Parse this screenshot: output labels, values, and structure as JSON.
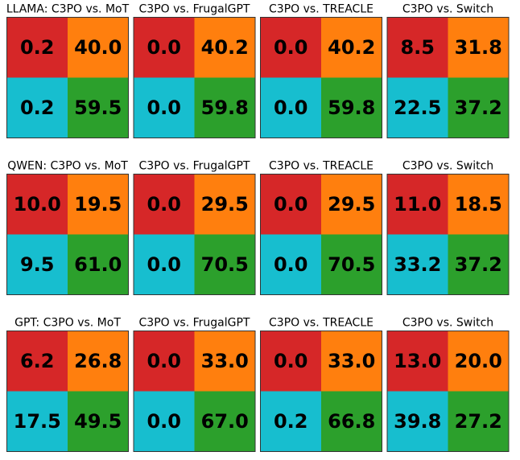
{
  "chart_data": [
    {
      "type": "heatmap",
      "title": "LLAMA: C3PO vs. MoT",
      "values": [
        [
          0.2,
          40.0
        ],
        [
          0.2,
          59.5
        ]
      ],
      "value_labels": [
        [
          "0.2",
          "40.0"
        ],
        [
          "0.2",
          "59.5"
        ]
      ],
      "colors": [
        [
          "#d62728",
          "#ff7f0e"
        ],
        [
          "#17becf",
          "#2ca02c"
        ]
      ]
    },
    {
      "type": "heatmap",
      "title": "C3PO vs. FrugalGPT",
      "values": [
        [
          0.0,
          40.2
        ],
        [
          0.0,
          59.8
        ]
      ],
      "value_labels": [
        [
          "0.0",
          "40.2"
        ],
        [
          "0.0",
          "59.8"
        ]
      ],
      "colors": [
        [
          "#d62728",
          "#ff7f0e"
        ],
        [
          "#17becf",
          "#2ca02c"
        ]
      ]
    },
    {
      "type": "heatmap",
      "title": "C3PO vs. TREACLE",
      "values": [
        [
          0.0,
          40.2
        ],
        [
          0.0,
          59.8
        ]
      ],
      "value_labels": [
        [
          "0.0",
          "40.2"
        ],
        [
          "0.0",
          "59.8"
        ]
      ],
      "colors": [
        [
          "#d62728",
          "#ff7f0e"
        ],
        [
          "#17becf",
          "#2ca02c"
        ]
      ]
    },
    {
      "type": "heatmap",
      "title": "C3PO vs. Switch",
      "values": [
        [
          8.5,
          31.8
        ],
        [
          22.5,
          37.2
        ]
      ],
      "value_labels": [
        [
          "8.5",
          "31.8"
        ],
        [
          "22.5",
          "37.2"
        ]
      ],
      "colors": [
        [
          "#d62728",
          "#ff7f0e"
        ],
        [
          "#17becf",
          "#2ca02c"
        ]
      ]
    },
    {
      "type": "heatmap",
      "title": "QWEN: C3PO vs. MoT",
      "values": [
        [
          10.0,
          19.5
        ],
        [
          9.5,
          61.0
        ]
      ],
      "value_labels": [
        [
          "10.0",
          "19.5"
        ],
        [
          "9.5",
          "61.0"
        ]
      ],
      "colors": [
        [
          "#d62728",
          "#ff7f0e"
        ],
        [
          "#17becf",
          "#2ca02c"
        ]
      ]
    },
    {
      "type": "heatmap",
      "title": "C3PO vs. FrugalGPT",
      "values": [
        [
          0.0,
          29.5
        ],
        [
          0.0,
          70.5
        ]
      ],
      "value_labels": [
        [
          "0.0",
          "29.5"
        ],
        [
          "0.0",
          "70.5"
        ]
      ],
      "colors": [
        [
          "#d62728",
          "#ff7f0e"
        ],
        [
          "#17becf",
          "#2ca02c"
        ]
      ]
    },
    {
      "type": "heatmap",
      "title": "C3PO vs. TREACLE",
      "values": [
        [
          0.0,
          29.5
        ],
        [
          0.0,
          70.5
        ]
      ],
      "value_labels": [
        [
          "0.0",
          "29.5"
        ],
        [
          "0.0",
          "70.5"
        ]
      ],
      "colors": [
        [
          "#d62728",
          "#ff7f0e"
        ],
        [
          "#17becf",
          "#2ca02c"
        ]
      ]
    },
    {
      "type": "heatmap",
      "title": "C3PO vs. Switch",
      "values": [
        [
          11.0,
          18.5
        ],
        [
          33.2,
          37.2
        ]
      ],
      "value_labels": [
        [
          "11.0",
          "18.5"
        ],
        [
          "33.2",
          "37.2"
        ]
      ],
      "colors": [
        [
          "#d62728",
          "#ff7f0e"
        ],
        [
          "#17becf",
          "#2ca02c"
        ]
      ]
    },
    {
      "type": "heatmap",
      "title": "GPT: C3PO vs. MoT",
      "values": [
        [
          6.2,
          26.8
        ],
        [
          17.5,
          49.5
        ]
      ],
      "value_labels": [
        [
          "6.2",
          "26.8"
        ],
        [
          "17.5",
          "49.5"
        ]
      ],
      "colors": [
        [
          "#d62728",
          "#ff7f0e"
        ],
        [
          "#17becf",
          "#2ca02c"
        ]
      ]
    },
    {
      "type": "heatmap",
      "title": "C3PO vs. FrugalGPT",
      "values": [
        [
          0.0,
          33.0
        ],
        [
          0.0,
          67.0
        ]
      ],
      "value_labels": [
        [
          "0.0",
          "33.0"
        ],
        [
          "0.0",
          "67.0"
        ]
      ],
      "colors": [
        [
          "#d62728",
          "#ff7f0e"
        ],
        [
          "#17becf",
          "#2ca02c"
        ]
      ]
    },
    {
      "type": "heatmap",
      "title": "C3PO vs. TREACLE",
      "values": [
        [
          0.0,
          33.0
        ],
        [
          0.2,
          66.8
        ]
      ],
      "value_labels": [
        [
          "0.0",
          "33.0"
        ],
        [
          "0.2",
          "66.8"
        ]
      ],
      "colors": [
        [
          "#d62728",
          "#ff7f0e"
        ],
        [
          "#17becf",
          "#2ca02c"
        ]
      ]
    },
    {
      "type": "heatmap",
      "title": "C3PO vs. Switch",
      "values": [
        [
          13.0,
          20.0
        ],
        [
          39.8,
          27.2
        ]
      ],
      "value_labels": [
        [
          "13.0",
          "20.0"
        ],
        [
          "39.8",
          "27.2"
        ]
      ],
      "colors": [
        [
          "#d62728",
          "#ff7f0e"
        ],
        [
          "#17becf",
          "#2ca02c"
        ]
      ]
    }
  ]
}
